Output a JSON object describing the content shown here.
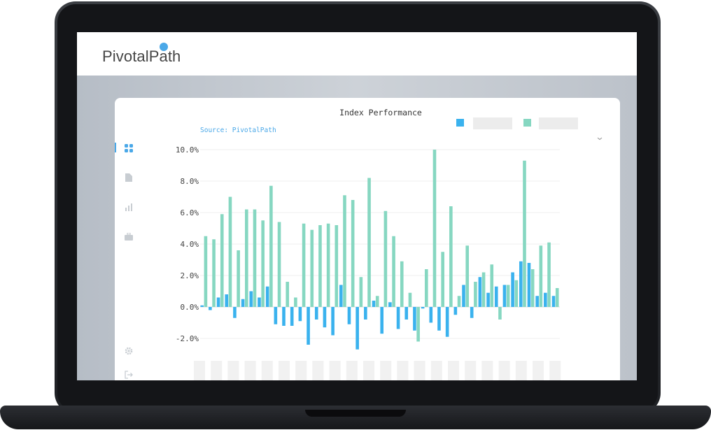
{
  "brand": {
    "logo_text": "PivotalPath"
  },
  "chart_data": {
    "type": "bar",
    "title": "Index Performance",
    "subtitle": "Source: PivotalPath",
    "yticks": [
      "10.0%",
      "8.0%",
      "6.0%",
      "4.0%",
      "2.0%",
      "0.0%",
      "-2.0%"
    ],
    "ylim": [
      -2.6,
      10.0
    ],
    "grid": true,
    "legend_placement": "top-right",
    "series": [
      {
        "color": "#3ab2ee",
        "values": [
          0.1,
          -0.2,
          0.6,
          0.8,
          -0.7,
          0.5,
          1.0,
          0.6,
          1.3,
          -1.1,
          -1.2,
          -1.2,
          -0.9,
          -2.4,
          -0.8,
          -1.3,
          -1.8,
          1.4,
          -1.1,
          -2.7,
          -0.8,
          0.4,
          -1.7,
          0.3,
          -1.4,
          -0.8,
          -1.5,
          -0.1,
          -1.0,
          -1.5,
          -1.9,
          -0.5,
          1.4,
          -0.7,
          1.9,
          0.9,
          1.3,
          1.4,
          2.2,
          2.9,
          2.8,
          0.7,
          0.9,
          0.7
        ]
      },
      {
        "color": "#86d7c1",
        "values": [
          4.5,
          4.3,
          5.9,
          7.0,
          3.6,
          6.2,
          6.2,
          5.5,
          7.7,
          5.4,
          1.6,
          0.6,
          5.3,
          4.9,
          5.2,
          5.3,
          5.2,
          7.1,
          6.8,
          1.9,
          8.2,
          0.7,
          6.1,
          4.5,
          2.9,
          0.9,
          -2.2,
          2.4,
          10.0,
          3.5,
          6.4,
          0.7,
          3.9,
          1.6,
          2.2,
          2.7,
          -0.8,
          1.4,
          1.7,
          9.3,
          2.4,
          3.9,
          4.1,
          1.2
        ]
      }
    ]
  }
}
